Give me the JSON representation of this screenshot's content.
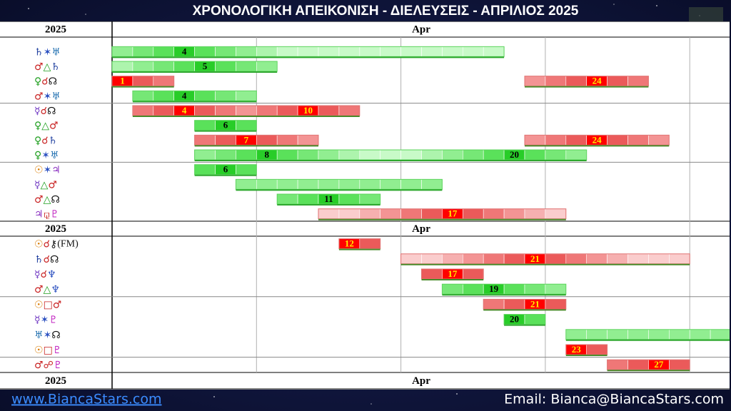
{
  "header": {
    "title": "ΧΡΟΝΟΛΟΓΙΚΗ ΑΠΕΙΚΟΝΙΣΗ - ΔΙΕΛΕΥΣΕΙΣ - ΑΠΡΙΛΙΟΣ 2025"
  },
  "table": {
    "year": "2025",
    "month": "Apr",
    "rows": [
      {
        "label": [
          "♄",
          "✶",
          "♅"
        ],
        "label_colors": [
          "#1f3f9f",
          "#2a4fc0",
          "#1f6fb0"
        ],
        "bars": [
          {
            "start": 1,
            "end": 19,
            "color": "green",
            "peaks": [
              4
            ]
          }
        ]
      },
      {
        "label": [
          "♂",
          "△",
          "♄"
        ],
        "label_colors": [
          "#c82020",
          "#1e9e1e",
          "#1f3f9f"
        ],
        "bars": [
          {
            "start": 1,
            "end": 8,
            "color": "green",
            "peaks": [
              5
            ]
          }
        ]
      },
      {
        "label": [
          "♀",
          "☌",
          "☊"
        ],
        "label_colors": [
          "#1e9e1e",
          "#c82020",
          "#111111"
        ],
        "bars": [
          {
            "start": 1,
            "end": 3,
            "color": "red",
            "peaks": [
              1
            ]
          },
          {
            "start": 21,
            "end": 26,
            "color": "red",
            "peaks": [
              24
            ]
          }
        ]
      },
      {
        "label": [
          "♂",
          "✶",
          "♅"
        ],
        "label_colors": [
          "#c82020",
          "#2a4fc0",
          "#1f6fb0"
        ],
        "bars": [
          {
            "start": 2,
            "end": 7,
            "color": "green",
            "peaks": [
              4
            ]
          }
        ]
      },
      {
        "label": [
          "☿",
          "☌",
          "☊"
        ],
        "label_colors": [
          "#6a2fc0",
          "#c82020",
          "#111111"
        ],
        "bars": [
          {
            "start": 2,
            "end": 12,
            "color": "red",
            "peaks": [
              4,
              10
            ]
          }
        ]
      },
      {
        "label": [
          "♀",
          "△",
          "♂"
        ],
        "label_colors": [
          "#1e9e1e",
          "#1e9e1e",
          "#c82020"
        ],
        "bars": [
          {
            "start": 5,
            "end": 7,
            "color": "green",
            "peaks": [
              6
            ]
          }
        ]
      },
      {
        "label": [
          "♀",
          "☌",
          "♄"
        ],
        "label_colors": [
          "#1e9e1e",
          "#c82020",
          "#1f3f9f"
        ],
        "bars": [
          {
            "start": 5,
            "end": 10,
            "color": "red",
            "peaks": [
              7
            ]
          },
          {
            "start": 21,
            "end": 27,
            "color": "red",
            "peaks": [
              24
            ]
          }
        ]
      },
      {
        "label": [
          "♀",
          "✶",
          "♅"
        ],
        "label_colors": [
          "#1e9e1e",
          "#2a4fc0",
          "#1f6fb0"
        ],
        "bars": [
          {
            "start": 5,
            "end": 23,
            "color": "green",
            "peaks": [
              8,
              20
            ]
          }
        ]
      },
      {
        "label": [
          "☉",
          "✶",
          "♃"
        ],
        "label_colors": [
          "#d97a00",
          "#2a4fc0",
          "#8a2fc0"
        ],
        "bars": [
          {
            "start": 5,
            "end": 7,
            "color": "green",
            "peaks": [
              6
            ]
          }
        ]
      },
      {
        "label": [
          "☿",
          "△",
          "♂"
        ],
        "label_colors": [
          "#6a2fc0",
          "#1e9e1e",
          "#c82020"
        ],
        "bars": [
          {
            "start": 7,
            "end": 16,
            "color": "green"
          }
        ]
      },
      {
        "label": [
          "♂",
          "△",
          "☊"
        ],
        "label_colors": [
          "#c82020",
          "#1e9e1e",
          "#111111"
        ],
        "bars": [
          {
            "start": 9,
            "end": 13,
            "color": "green",
            "peaks": [
              11
            ]
          }
        ]
      },
      {
        "label": [
          "♃",
          "⚼",
          "♇"
        ],
        "label_colors": [
          "#8a2fc0",
          "#c82020",
          "#c020c0"
        ],
        "bars": [
          {
            "start": 11,
            "end": 22,
            "color": "red",
            "peaks": [
              17
            ]
          }
        ]
      },
      {
        "label": [
          "☉",
          "☌",
          "⚷",
          "(FM)"
        ],
        "label_colors": [
          "#d97a00",
          "#c82020",
          "#111111",
          "#111111"
        ],
        "bars": [
          {
            "start": 12,
            "end": 13,
            "color": "red",
            "peaks": [
              12
            ]
          }
        ]
      },
      {
        "label": [
          "♄",
          "☌",
          "☊"
        ],
        "label_colors": [
          "#1f3f9f",
          "#c82020",
          "#111111"
        ],
        "bars": [
          {
            "start": 15,
            "end": 28,
            "color": "red",
            "peaks": [
              21
            ]
          }
        ]
      },
      {
        "label": [
          "☿",
          "☌",
          "♆"
        ],
        "label_colors": [
          "#6a2fc0",
          "#c82020",
          "#2a4fc0"
        ],
        "bars": [
          {
            "start": 16,
            "end": 18,
            "color": "red",
            "peaks": [
              17
            ]
          }
        ]
      },
      {
        "label": [
          "♂",
          "△",
          "♆"
        ],
        "label_colors": [
          "#c82020",
          "#1e9e1e",
          "#2a4fc0"
        ],
        "bars": [
          {
            "start": 17,
            "end": 22,
            "color": "green",
            "peaks": [
              19
            ]
          }
        ]
      },
      {
        "label": [
          "☉",
          "□",
          "♂"
        ],
        "label_colors": [
          "#d97a00",
          "#c82020",
          "#c82020"
        ],
        "bars": [
          {
            "start": 19,
            "end": 22,
            "color": "red",
            "peaks": [
              21
            ]
          }
        ]
      },
      {
        "label": [
          "☿",
          "✶",
          "♇"
        ],
        "label_colors": [
          "#6a2fc0",
          "#2a4fc0",
          "#c020c0"
        ],
        "bars": [
          {
            "start": 20,
            "end": 21,
            "color": "green",
            "peaks": [
              20
            ]
          }
        ]
      },
      {
        "label": [
          "♅",
          "✶",
          "☊"
        ],
        "label_colors": [
          "#1f6fb0",
          "#2a4fc0",
          "#111111"
        ],
        "bars": [
          {
            "start": 23,
            "end": 30,
            "color": "green"
          }
        ]
      },
      {
        "label": [
          "☉",
          "□",
          "♇"
        ],
        "label_colors": [
          "#d97a00",
          "#c82020",
          "#c020c0"
        ],
        "bars": [
          {
            "start": 23,
            "end": 24,
            "color": "red",
            "peaks": [
              23
            ]
          }
        ]
      },
      {
        "label": [
          "♂",
          "☍",
          "♇"
        ],
        "label_colors": [
          "#c82020",
          "#c82020",
          "#c020c0"
        ],
        "bars": [
          {
            "start": 25,
            "end": 28,
            "color": "red",
            "peaks": [
              27
            ]
          }
        ]
      }
    ]
  },
  "footer": {
    "website": "www.BiancaStars.com",
    "email": "Email: Bianca@BiancaStars.com"
  }
}
